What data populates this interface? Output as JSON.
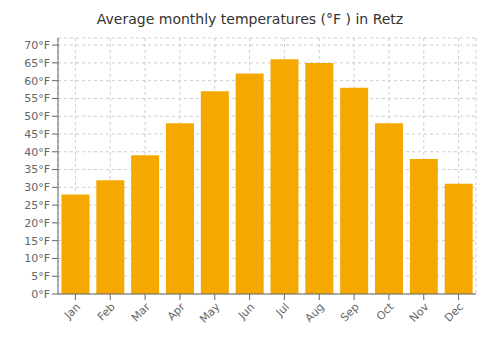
{
  "chart_data": {
    "type": "bar",
    "title": "Average monthly temperatures (°F ) in Retz",
    "categories": [
      "Jan",
      "Feb",
      "Mar",
      "Apr",
      "May",
      "Jun",
      "Jul",
      "Aug",
      "Sep",
      "Oct",
      "Nov",
      "Dec"
    ],
    "values": [
      28,
      32,
      39,
      48,
      57,
      62,
      66,
      65,
      58,
      48,
      38,
      31
    ],
    "color": "#F5A800",
    "ylim": [
      0,
      72
    ],
    "yticks": [
      {
        "value": 0,
        "label": "0°F"
      },
      {
        "value": 5,
        "label": "5°F"
      },
      {
        "value": 10,
        "label": "10°F"
      },
      {
        "value": 15,
        "label": "15°F"
      },
      {
        "value": 20,
        "label": "20°F"
      },
      {
        "value": 25,
        "label": "25°F"
      },
      {
        "value": 30,
        "label": "30°F"
      },
      {
        "value": 35,
        "label": "35°F"
      },
      {
        "value": 40,
        "label": "40°F"
      },
      {
        "value": 45,
        "label": "45°F"
      },
      {
        "value": 50,
        "label": "50°F"
      },
      {
        "value": 55,
        "label": "55°F"
      },
      {
        "value": 60,
        "label": "60°F"
      },
      {
        "value": 65,
        "label": "65°F"
      },
      {
        "value": 70,
        "label": "70°F"
      }
    ],
    "grid": true
  }
}
